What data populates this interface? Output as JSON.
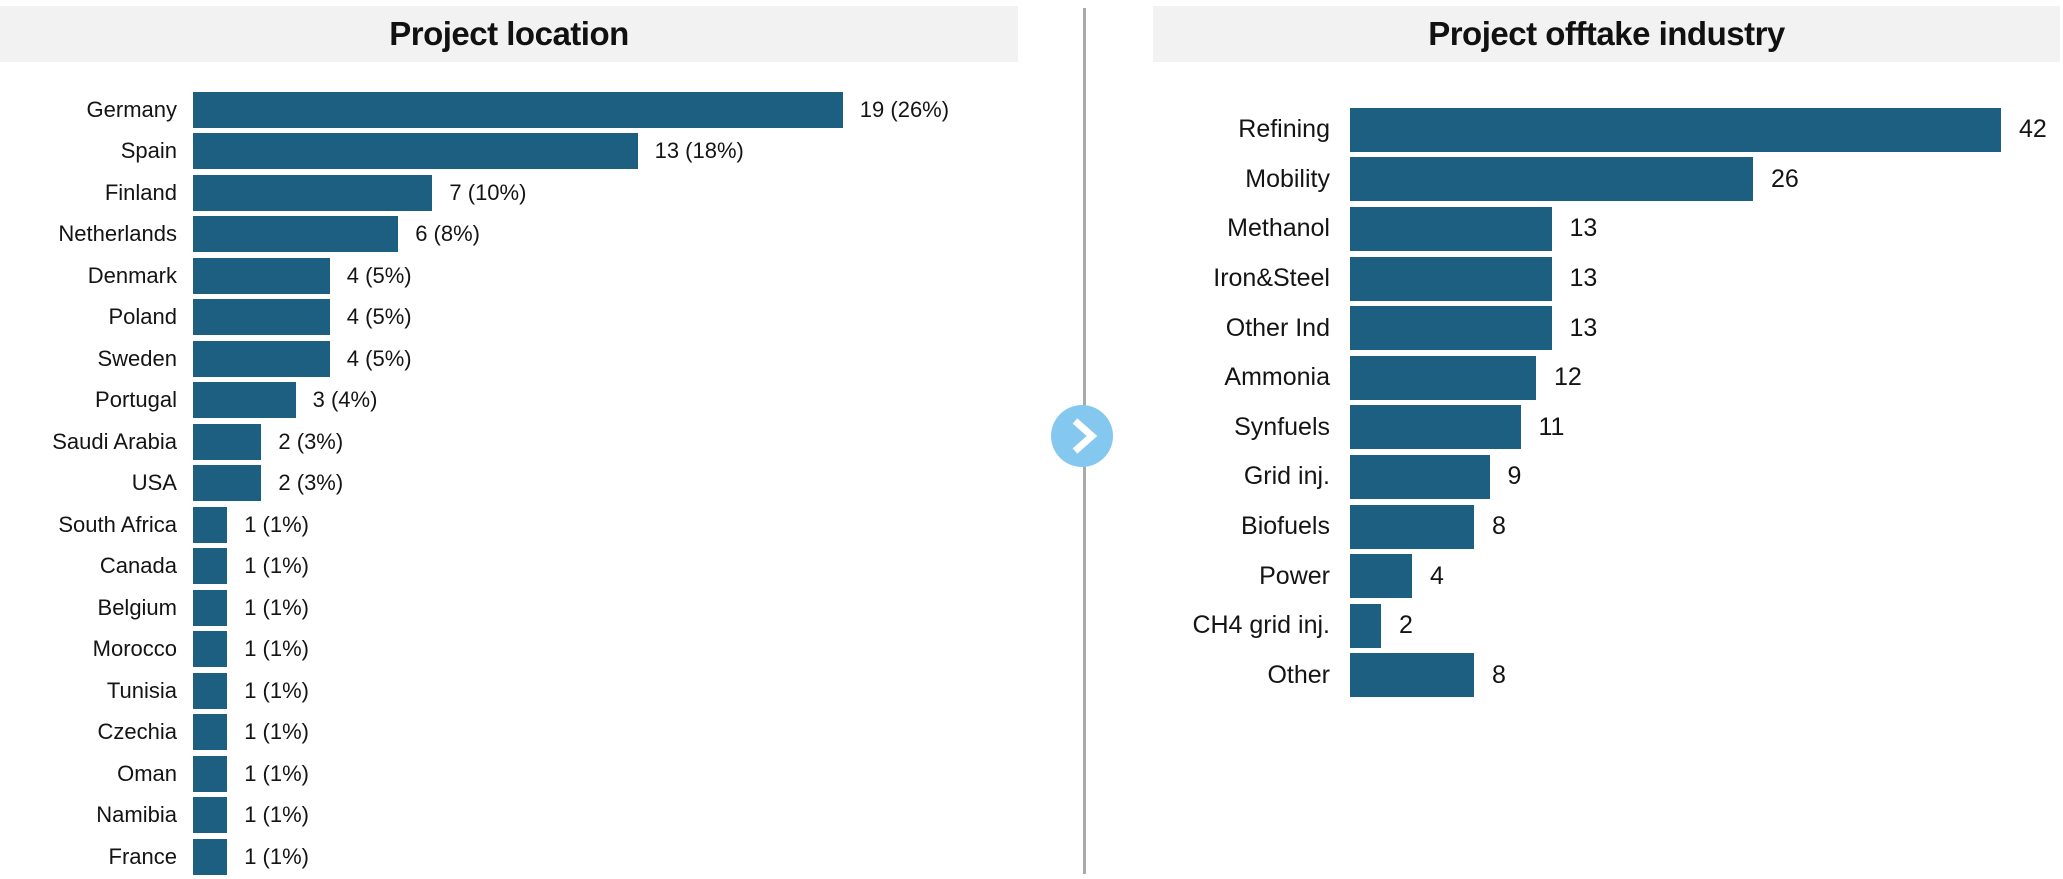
{
  "colors": {
    "bar": "#1d5f80",
    "banner": "#f2f2f2",
    "divider": "#a9a9a9",
    "chevron": "#85c8ef"
  },
  "divider": {
    "chevron_icon": "chevron-right"
  },
  "chart_data": [
    {
      "type": "bar",
      "orientation": "horizontal",
      "title": "Project location",
      "categories": [
        "Germany",
        "Spain",
        "Finland",
        "Netherlands",
        "Denmark",
        "Poland",
        "Sweden",
        "Portugal",
        "Saudi Arabia",
        "USA",
        "South Africa",
        "Canada",
        "Belgium",
        "Morocco",
        "Tunisia",
        "Czechia",
        "Oman",
        "Namibia",
        "France"
      ],
      "values": [
        19,
        13,
        7,
        6,
        4,
        4,
        4,
        3,
        2,
        2,
        1,
        1,
        1,
        1,
        1,
        1,
        1,
        1,
        1
      ],
      "value_labels": [
        "19 (26%)",
        "13 (18%)",
        "7 (10%)",
        "6 (8%)",
        "4 (5%)",
        "4 (5%)",
        "4 (5%)",
        "3 (4%)",
        "2 (3%)",
        "2 (3%)",
        "1 (1%)",
        "1 (1%)",
        "1 (1%)",
        "1 (1%)",
        "1 (1%)",
        "1 (1%)",
        "1 (1%)",
        "1 (1%)",
        "1 (1%)"
      ],
      "xlabel": "",
      "ylabel": "",
      "xlim": [
        0,
        19
      ],
      "grid": false,
      "legend": false
    },
    {
      "type": "bar",
      "orientation": "horizontal",
      "title": "Project offtake industry",
      "categories": [
        "Refining",
        "Mobility",
        "Methanol",
        "Iron&Steel",
        "Other Ind",
        "Ammonia",
        "Synfuels",
        "Grid inj.",
        "Biofuels",
        "Power",
        "CH4 grid inj.",
        "Other"
      ],
      "values": [
        42,
        26,
        13,
        13,
        13,
        12,
        11,
        9,
        8,
        4,
        2,
        8
      ],
      "value_labels": [
        "42",
        "26",
        "13",
        "13",
        "13",
        "12",
        "11",
        "9",
        "8",
        "4",
        "2",
        "8"
      ],
      "xlabel": "",
      "ylabel": "",
      "xlim": [
        0,
        42
      ],
      "grid": false,
      "legend": false
    }
  ]
}
